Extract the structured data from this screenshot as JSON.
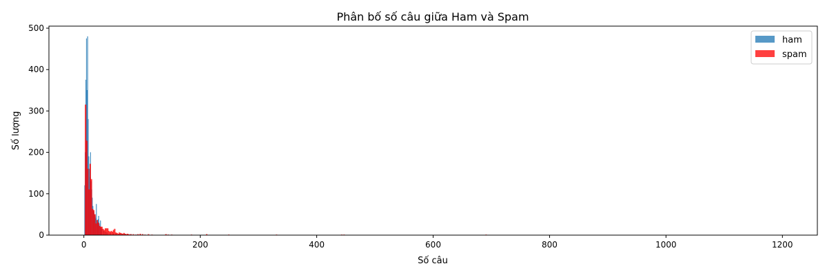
{
  "chart_data": {
    "type": "bar",
    "title": "Phân bố số câu giữa Ham và Spam",
    "xlabel": "Số câu",
    "ylabel": "Số lượng",
    "xlim": [
      -60,
      1260
    ],
    "ylim": [
      0,
      505
    ],
    "xticks": [
      0,
      200,
      400,
      600,
      800,
      1000,
      1200
    ],
    "yticks": [
      0,
      100,
      200,
      300,
      400,
      500
    ],
    "grid": false,
    "legend": "top-right",
    "series": [
      {
        "name": "ham",
        "color": "#1f77b4",
        "bin_width": 1,
        "bins": [
          [
            1,
            120
          ],
          [
            2,
            200
          ],
          [
            3,
            375
          ],
          [
            4,
            475
          ],
          [
            5,
            350
          ],
          [
            6,
            480
          ],
          [
            7,
            280
          ],
          [
            8,
            190
          ],
          [
            9,
            160
          ],
          [
            10,
            140
          ],
          [
            11,
            200
          ],
          [
            12,
            130
          ],
          [
            13,
            110
          ],
          [
            14,
            90
          ],
          [
            15,
            70
          ],
          [
            16,
            60
          ],
          [
            17,
            55
          ],
          [
            18,
            50
          ],
          [
            19,
            45
          ],
          [
            20,
            40
          ],
          [
            21,
            75
          ],
          [
            22,
            35
          ],
          [
            23,
            30
          ],
          [
            24,
            38
          ],
          [
            25,
            46
          ],
          [
            26,
            28
          ],
          [
            27,
            22
          ],
          [
            28,
            35
          ],
          [
            29,
            18
          ],
          [
            30,
            15
          ],
          [
            32,
            14
          ],
          [
            34,
            10
          ],
          [
            36,
            8
          ],
          [
            38,
            7
          ],
          [
            40,
            6
          ],
          [
            45,
            5
          ],
          [
            50,
            4
          ],
          [
            55,
            3
          ],
          [
            60,
            3
          ],
          [
            65,
            2
          ],
          [
            70,
            2
          ],
          [
            80,
            2
          ],
          [
            90,
            1
          ],
          [
            100,
            1
          ]
        ]
      },
      {
        "name": "spam",
        "color": "#ff0000",
        "bin_width": 2,
        "bins": [
          [
            2,
            315
          ],
          [
            4,
            228
          ],
          [
            6,
            160
          ],
          [
            8,
            110
          ],
          [
            10,
            172
          ],
          [
            12,
            135
          ],
          [
            14,
            63
          ],
          [
            16,
            60
          ],
          [
            18,
            50
          ],
          [
            20,
            28
          ],
          [
            22,
            36
          ],
          [
            24,
            30
          ],
          [
            26,
            22
          ],
          [
            28,
            20
          ],
          [
            30,
            20
          ],
          [
            32,
            15
          ],
          [
            34,
            12
          ],
          [
            36,
            16
          ],
          [
            38,
            16
          ],
          [
            40,
            16
          ],
          [
            42,
            10
          ],
          [
            44,
            8
          ],
          [
            46,
            10
          ],
          [
            48,
            8
          ],
          [
            50,
            12
          ],
          [
            52,
            15
          ],
          [
            54,
            6
          ],
          [
            56,
            5
          ],
          [
            58,
            3
          ],
          [
            60,
            6
          ],
          [
            62,
            5
          ],
          [
            64,
            4
          ],
          [
            66,
            3
          ],
          [
            68,
            5
          ],
          [
            70,
            3
          ],
          [
            72,
            2
          ],
          [
            74,
            3
          ],
          [
            76,
            2
          ],
          [
            78,
            1
          ],
          [
            80,
            2
          ],
          [
            84,
            2
          ],
          [
            88,
            1
          ],
          [
            92,
            2
          ],
          [
            96,
            3
          ],
          [
            100,
            2
          ],
          [
            104,
            1
          ],
          [
            110,
            2
          ],
          [
            116,
            1
          ],
          [
            140,
            2
          ],
          [
            144,
            1
          ],
          [
            150,
            1
          ],
          [
            184,
            1
          ],
          [
            210,
            2
          ],
          [
            248,
            1
          ],
          [
            330,
            1
          ],
          [
            442,
            1
          ],
          [
            446,
            1
          ],
          [
            690,
            1
          ]
        ]
      }
    ]
  }
}
